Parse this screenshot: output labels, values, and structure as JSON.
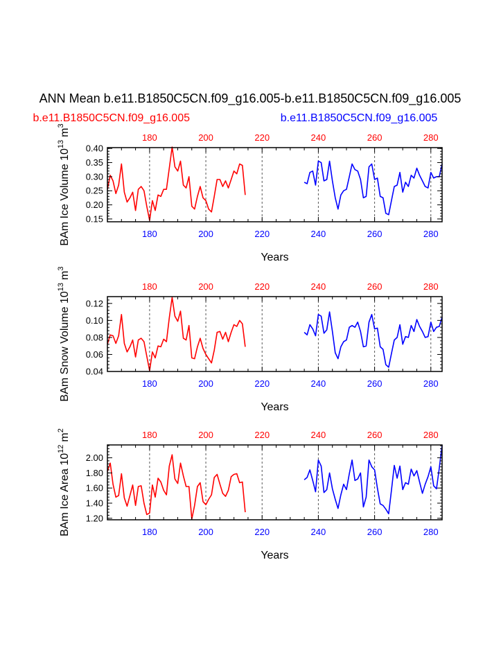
{
  "title": "ANN Mean b.e11.B1850C5CN.f09_g16.005-b.e11.B1850C5CN.f09_g16.005",
  "legend": [
    {
      "label": "b.e11.B1850C5CN.f09_g16.005",
      "color": "#ff0000"
    },
    {
      "label": "b.e11.B1850C5CN.f09_g16.005",
      "color": "#0000ff"
    }
  ],
  "colors": {
    "case1": "#ff0000",
    "case2": "#0000ff",
    "axis": "#000000",
    "grid": "#555555"
  },
  "chart_data": [
    {
      "type": "line",
      "title": "",
      "ylabel": "BAm Ice Volume 10",
      "ylabel_exp": "13",
      "ylabel_unit": "m",
      "ylabel_unit_exp": "3",
      "xlabel": "Years",
      "xlim": [
        165,
        284
      ],
      "ylim": [
        0.14,
        0.403
      ],
      "yticks": [
        0.15,
        0.2,
        0.25,
        0.3,
        0.35,
        0.4
      ],
      "ytick_labels": [
        "0.15",
        "0.20",
        "0.25",
        "0.30",
        "0.35",
        "0.40"
      ],
      "xticks_bottom": [
        180,
        200,
        220,
        240,
        260,
        280
      ],
      "xticks_bottom_labels": [
        "180",
        "200",
        "220",
        "240",
        "260",
        "280"
      ],
      "xticks_top": [
        180,
        200,
        220,
        240,
        260,
        280
      ],
      "xticks_top_labels": [
        "180",
        "200",
        "220",
        "240",
        "260",
        "280"
      ],
      "dashed_gridlines_x": [
        180,
        200,
        220,
        240,
        260,
        280
      ],
      "series": [
        {
          "name": "b.e11.B1850C5CN.f09_g16.005",
          "color": "#ff0000",
          "x": [
            165,
            166,
            167,
            168,
            169,
            170,
            171,
            172,
            173,
            174,
            175,
            176,
            177,
            178,
            179,
            180,
            181,
            182,
            183,
            184,
            185,
            186,
            187,
            188,
            189,
            190,
            191,
            192,
            193,
            194,
            195,
            196,
            197,
            198,
            199,
            200,
            201,
            202,
            203,
            204,
            205,
            206,
            207,
            208,
            209,
            210,
            211,
            212,
            213,
            214
          ],
          "values": [
            0.255,
            0.305,
            0.285,
            0.24,
            0.27,
            0.345,
            0.245,
            0.21,
            0.225,
            0.245,
            0.18,
            0.255,
            0.265,
            0.25,
            0.195,
            0.145,
            0.215,
            0.18,
            0.235,
            0.23,
            0.255,
            0.255,
            0.33,
            0.405,
            0.335,
            0.32,
            0.355,
            0.27,
            0.26,
            0.3,
            0.195,
            0.185,
            0.23,
            0.265,
            0.225,
            0.215,
            0.185,
            0.175,
            0.23,
            0.29,
            0.29,
            0.265,
            0.285,
            0.26,
            0.29,
            0.32,
            0.31,
            0.345,
            0.34,
            0.235
          ]
        },
        {
          "name": "b.e11.B1850C5CN.f09_g16.005",
          "color": "#0000ff",
          "x": [
            235,
            236,
            237,
            238,
            239,
            240,
            241,
            242,
            243,
            244,
            245,
            246,
            247,
            248,
            249,
            250,
            251,
            252,
            253,
            254,
            255,
            256,
            257,
            258,
            259,
            260,
            261,
            262,
            263,
            264,
            265,
            266,
            267,
            268,
            269,
            270,
            271,
            272,
            273,
            274,
            275,
            276,
            277,
            278,
            279,
            280,
            281,
            282,
            283,
            284
          ],
          "values": [
            0.28,
            0.275,
            0.315,
            0.32,
            0.27,
            0.355,
            0.35,
            0.285,
            0.29,
            0.355,
            0.285,
            0.225,
            0.185,
            0.235,
            0.25,
            0.255,
            0.3,
            0.345,
            0.325,
            0.32,
            0.29,
            0.225,
            0.23,
            0.335,
            0.345,
            0.29,
            0.295,
            0.23,
            0.225,
            0.17,
            0.165,
            0.215,
            0.265,
            0.27,
            0.315,
            0.245,
            0.28,
            0.265,
            0.305,
            0.295,
            0.33,
            0.305,
            0.285,
            0.265,
            0.26,
            0.315,
            0.295,
            0.3,
            0.3,
            0.345
          ]
        }
      ]
    },
    {
      "type": "line",
      "title": "",
      "ylabel": "BAm Snow Volume 10",
      "ylabel_exp": "13",
      "ylabel_unit": "m",
      "ylabel_unit_exp": "3",
      "xlabel": "Years",
      "xlim": [
        165,
        284
      ],
      "ylim": [
        0.04,
        0.128
      ],
      "yticks": [
        0.04,
        0.06,
        0.08,
        0.1,
        0.12
      ],
      "ytick_labels": [
        "0.04",
        "0.06",
        "0.08",
        "0.10",
        "0.12"
      ],
      "xticks_bottom": [
        180,
        200,
        220,
        240,
        260,
        280
      ],
      "xticks_bottom_labels": [
        "180",
        "200",
        "220",
        "240",
        "260",
        "280"
      ],
      "xticks_top": [
        180,
        200,
        220,
        240,
        260,
        280
      ],
      "xticks_top_labels": [
        "180",
        "200",
        "220",
        "240",
        "260",
        "280"
      ],
      "dashed_gridlines_x": [
        180,
        200,
        220,
        240,
        260,
        280
      ],
      "series": [
        {
          "name": "b.e11.B1850C5CN.f09_g16.005",
          "color": "#ff0000",
          "x": [
            165,
            166,
            167,
            168,
            169,
            170,
            171,
            172,
            173,
            174,
            175,
            176,
            177,
            178,
            179,
            180,
            181,
            182,
            183,
            184,
            185,
            186,
            187,
            188,
            189,
            190,
            191,
            192,
            193,
            194,
            195,
            196,
            197,
            198,
            199,
            200,
            201,
            202,
            203,
            204,
            205,
            206,
            207,
            208,
            209,
            210,
            211,
            212,
            213,
            214
          ],
          "values": [
            0.072,
            0.083,
            0.082,
            0.073,
            0.082,
            0.107,
            0.073,
            0.063,
            0.069,
            0.077,
            0.057,
            0.077,
            0.079,
            0.075,
            0.058,
            0.041,
            0.063,
            0.056,
            0.07,
            0.069,
            0.078,
            0.075,
            0.103,
            0.127,
            0.105,
            0.099,
            0.111,
            0.079,
            0.077,
            0.094,
            0.056,
            0.055,
            0.069,
            0.079,
            0.067,
            0.06,
            0.055,
            0.05,
            0.065,
            0.086,
            0.087,
            0.078,
            0.086,
            0.075,
            0.086,
            0.095,
            0.093,
            0.1,
            0.096,
            0.069
          ]
        },
        {
          "name": "b.e11.B1850C5CN.f09_g16.005",
          "color": "#0000ff",
          "x": [
            235,
            236,
            237,
            238,
            239,
            240,
            241,
            242,
            243,
            244,
            245,
            246,
            247,
            248,
            249,
            250,
            251,
            252,
            253,
            254,
            255,
            256,
            257,
            258,
            259,
            260,
            261,
            262,
            263,
            264,
            265,
            266,
            267,
            268,
            269,
            270,
            271,
            272,
            273,
            274,
            275,
            276,
            277,
            278,
            279,
            280,
            281,
            282,
            283,
            284
          ],
          "values": [
            0.086,
            0.083,
            0.095,
            0.09,
            0.082,
            0.107,
            0.105,
            0.085,
            0.089,
            0.11,
            0.087,
            0.062,
            0.055,
            0.069,
            0.075,
            0.077,
            0.092,
            0.094,
            0.092,
            0.098,
            0.087,
            0.069,
            0.07,
            0.098,
            0.107,
            0.09,
            0.091,
            0.069,
            0.066,
            0.048,
            0.045,
            0.061,
            0.077,
            0.08,
            0.095,
            0.072,
            0.081,
            0.08,
            0.094,
            0.087,
            0.101,
            0.093,
            0.087,
            0.08,
            0.081,
            0.098,
            0.087,
            0.092,
            0.093,
            0.104
          ]
        }
      ]
    },
    {
      "type": "line",
      "title": "",
      "ylabel": "BAm Ice Area 10",
      "ylabel_exp": "12",
      "ylabel_unit": "m",
      "ylabel_unit_exp": "2",
      "xlabel": "Years",
      "xlim": [
        165,
        284
      ],
      "ylim": [
        1.18,
        2.17
      ],
      "yticks": [
        1.2,
        1.4,
        1.6,
        1.8,
        2.0
      ],
      "ytick_labels": [
        "1.20",
        "1.40",
        "1.60",
        "1.80",
        "2.00"
      ],
      "xticks_bottom": [
        180,
        200,
        220,
        240,
        260,
        280
      ],
      "xticks_bottom_labels": [
        "180",
        "200",
        "220",
        "240",
        "260",
        "280"
      ],
      "xticks_top": [
        180,
        200,
        220,
        240,
        260,
        280
      ],
      "xticks_top_labels": [
        "180",
        "200",
        "220",
        "240",
        "260",
        "280"
      ],
      "dashed_gridlines_x": [
        180,
        200,
        220,
        240,
        260,
        280
      ],
      "series": [
        {
          "name": "b.e11.B1850C5CN.f09_g16.005",
          "color": "#ff0000",
          "x": [
            165,
            166,
            167,
            168,
            169,
            170,
            171,
            172,
            173,
            174,
            175,
            176,
            177,
            178,
            179,
            180,
            181,
            182,
            183,
            184,
            185,
            186,
            187,
            188,
            189,
            190,
            191,
            192,
            193,
            194,
            195,
            196,
            197,
            198,
            199,
            200,
            201,
            202,
            203,
            204,
            205,
            206,
            207,
            208,
            209,
            210,
            211,
            212,
            213,
            214
          ],
          "values": [
            1.82,
            1.93,
            1.65,
            1.48,
            1.5,
            1.79,
            1.47,
            1.36,
            1.5,
            1.64,
            1.37,
            1.62,
            1.63,
            1.4,
            1.25,
            1.27,
            1.64,
            1.48,
            1.73,
            1.68,
            1.57,
            1.51,
            1.89,
            2.04,
            1.72,
            1.66,
            1.93,
            1.76,
            1.62,
            1.62,
            1.19,
            1.37,
            1.62,
            1.67,
            1.42,
            1.38,
            1.45,
            1.51,
            1.74,
            1.78,
            1.65,
            1.53,
            1.49,
            1.57,
            1.75,
            1.78,
            1.79,
            1.67,
            1.68,
            1.28
          ]
        },
        {
          "name": "b.e11.B1850C5CN.f09_g16.005",
          "color": "#0000ff",
          "x": [
            235,
            236,
            237,
            238,
            239,
            240,
            241,
            242,
            243,
            244,
            245,
            246,
            247,
            248,
            249,
            250,
            251,
            252,
            253,
            254,
            255,
            256,
            257,
            258,
            259,
            260,
            261,
            262,
            263,
            264,
            265,
            266,
            267,
            268,
            269,
            270,
            271,
            272,
            273,
            274,
            275,
            276,
            277,
            278,
            279,
            280,
            281,
            282,
            283,
            284
          ],
          "values": [
            1.71,
            1.74,
            1.84,
            1.7,
            1.55,
            1.97,
            1.89,
            1.54,
            1.58,
            1.8,
            1.59,
            1.45,
            1.33,
            1.51,
            1.65,
            1.58,
            1.79,
            1.97,
            1.7,
            1.72,
            1.8,
            1.35,
            1.48,
            1.97,
            1.88,
            1.84,
            1.6,
            1.39,
            1.37,
            1.32,
            1.26,
            1.57,
            1.9,
            1.73,
            1.89,
            1.58,
            1.67,
            1.65,
            1.85,
            1.76,
            1.83,
            1.68,
            1.53,
            1.65,
            1.75,
            1.88,
            1.63,
            1.59,
            1.86,
            2.17
          ]
        }
      ]
    }
  ]
}
